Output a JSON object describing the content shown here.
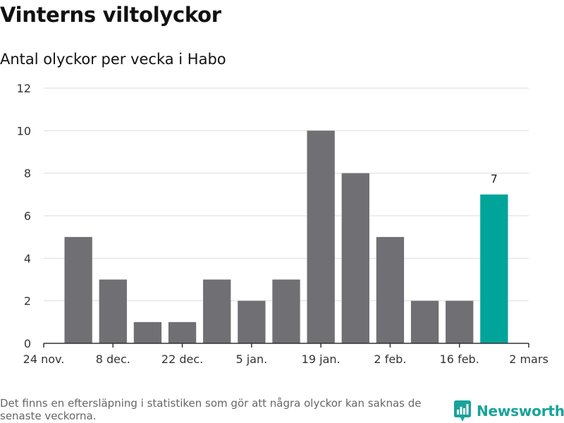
{
  "header": {
    "title": "Vinterns viltolyckor",
    "subtitle": "Antal olyckor per vecka i Habo"
  },
  "chart_data": {
    "type": "bar",
    "x_dates": [
      "2019-12-01",
      "2019-12-08",
      "2019-12-15",
      "2019-12-22",
      "2019-12-29",
      "2020-01-05",
      "2020-01-12",
      "2020-01-19",
      "2020-01-26",
      "2020-02-02",
      "2020-02-09",
      "2020-02-16",
      "2020-02-23"
    ],
    "values": [
      5,
      3,
      1,
      1,
      3,
      2,
      3,
      10,
      8,
      5,
      2,
      2,
      7
    ],
    "highlight_index": 12,
    "data_labels": [
      {
        "index": 12,
        "text": "7"
      }
    ],
    "xlim": [
      "2019-11-24",
      "2020-03-01"
    ],
    "x_ticks": [
      "24 nov.",
      "8 dec.",
      "22 dec.",
      "5 jan.",
      "19 jan.",
      "2 feb.",
      "16 feb.",
      "2 mars"
    ],
    "x_tick_dates": [
      "2019-11-24",
      "2019-12-08",
      "2019-12-22",
      "2020-01-05",
      "2020-01-19",
      "2020-02-02",
      "2020-02-16",
      "2020-03-01"
    ],
    "ylim": [
      0,
      12
    ],
    "y_ticks": [
      "0",
      "2",
      "4",
      "6",
      "8",
      "10",
      "12"
    ],
    "grid": true,
    "colors": {
      "bar": "#706f74",
      "highlight": "#00a49a",
      "grid": "#dddddd",
      "axis": "#333333"
    }
  },
  "footer": {
    "note": "Det finns en eftersläpning i statistiken som gör att några olyckor kan saknas de senaste veckorna.",
    "brand": "Newsworthy",
    "brand_icon": "bar-chart-icon",
    "brand_color": "#19a39a"
  }
}
